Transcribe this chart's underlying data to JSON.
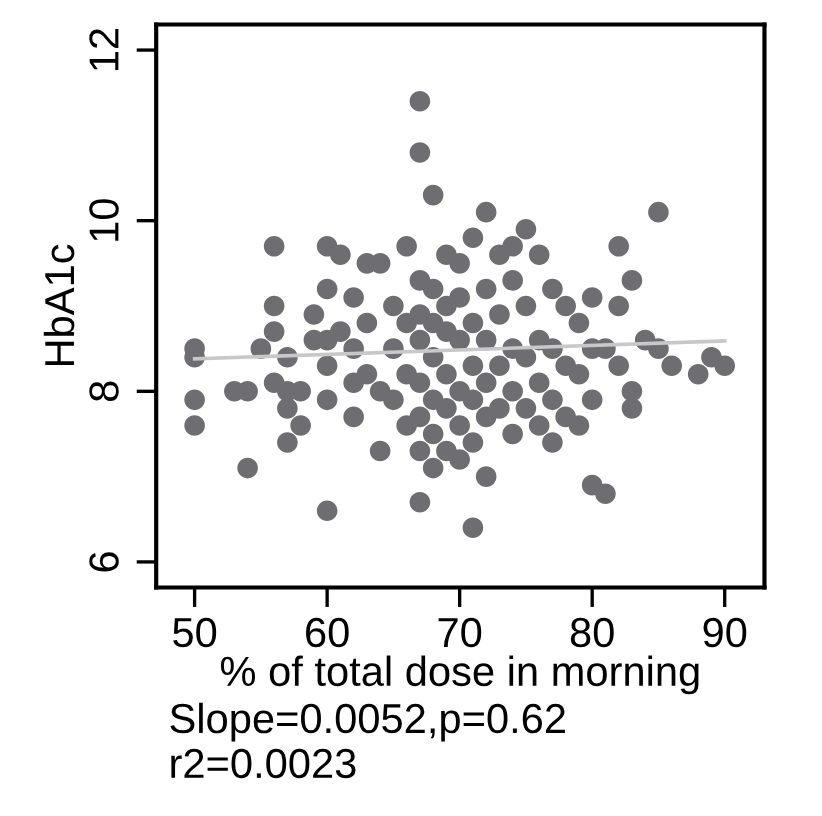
{
  "chart_data": {
    "type": "scatter",
    "xlabel": "% of total dose in morning",
    "ylabel": "HbA1c",
    "xlim": [
      47.1,
      93
    ],
    "ylim": [
      5.7,
      12.3
    ],
    "xticks": [
      50,
      60,
      70,
      80,
      90
    ],
    "yticks": [
      6,
      8,
      10,
      12
    ],
    "grid": false,
    "legend": false,
    "annotations": [
      "Slope=0.0052,p=0.62",
      "r2=0.0023"
    ],
    "series": [
      {
        "marker": "circle",
        "color": "#6e6e72",
        "x": [
          50,
          50,
          50,
          50,
          53,
          54,
          54,
          56,
          56,
          56,
          57,
          56,
          57,
          57,
          55,
          57,
          58,
          58,
          59,
          59,
          60,
          60,
          60,
          60,
          60,
          60,
          61,
          61,
          62,
          62,
          62,
          62,
          63,
          63,
          63,
          64,
          64,
          64,
          65,
          65,
          65,
          66,
          66,
          66,
          66,
          67,
          67,
          67,
          67,
          67,
          67,
          67,
          67,
          67,
          68,
          68,
          68,
          68,
          68,
          68,
          68,
          69,
          69,
          69,
          69,
          69,
          69,
          70,
          70,
          70,
          70,
          70,
          70,
          71,
          71,
          71,
          71,
          71,
          71,
          72,
          72,
          72,
          72,
          72,
          72,
          73,
          73,
          73,
          73,
          74,
          74,
          74,
          74,
          74,
          75,
          75,
          75,
          75,
          76,
          76,
          76,
          76,
          77,
          77,
          77,
          77,
          78,
          78,
          78,
          79,
          79,
          79,
          80,
          80,
          80,
          80,
          81,
          81,
          82,
          82,
          82,
          83,
          83,
          83,
          84,
          85,
          85,
          86,
          88,
          89,
          90
        ],
        "values": [
          8.5,
          8.4,
          7.9,
          7.6,
          8.0,
          8.0,
          7.1,
          9.7,
          9.0,
          8.7,
          8.4,
          8.1,
          8.0,
          7.8,
          8.5,
          7.4,
          8.0,
          7.6,
          8.9,
          8.6,
          9.7,
          9.2,
          8.6,
          8.3,
          7.9,
          6.6,
          8.7,
          9.6,
          9.1,
          8.5,
          8.1,
          7.7,
          9.5,
          8.8,
          8.2,
          9.5,
          8.0,
          7.3,
          9.0,
          8.5,
          7.9,
          9.7,
          8.8,
          8.2,
          7.6,
          11.4,
          10.8,
          9.3,
          8.9,
          8.6,
          8.1,
          7.7,
          7.3,
          6.7,
          10.3,
          9.2,
          8.8,
          8.4,
          7.9,
          7.5,
          7.1,
          9.6,
          9.0,
          8.7,
          8.2,
          7.8,
          7.3,
          9.5,
          9.1,
          8.6,
          8.0,
          7.6,
          7.2,
          9.8,
          8.8,
          8.3,
          7.9,
          7.4,
          6.4,
          10.1,
          9.2,
          8.6,
          8.1,
          7.7,
          7.0,
          9.6,
          8.9,
          8.3,
          7.8,
          9.7,
          9.3,
          8.5,
          8.0,
          7.5,
          9.9,
          9.0,
          8.4,
          7.8,
          9.6,
          8.6,
          8.1,
          7.6,
          9.2,
          8.5,
          7.9,
          7.4,
          9.0,
          8.3,
          7.7,
          8.8,
          8.2,
          7.6,
          9.1,
          8.5,
          7.9,
          6.9,
          8.5,
          6.8,
          9.0,
          8.3,
          9.7,
          9.3,
          8.0,
          7.8,
          8.6,
          10.1,
          8.5,
          8.3,
          8.2,
          8.4,
          8.3
        ]
      },
      {
        "type": "line",
        "marker": "none",
        "color": "#c8c8c8",
        "x": [
          50,
          90
        ],
        "values": [
          8.38,
          8.59
        ]
      }
    ]
  }
}
